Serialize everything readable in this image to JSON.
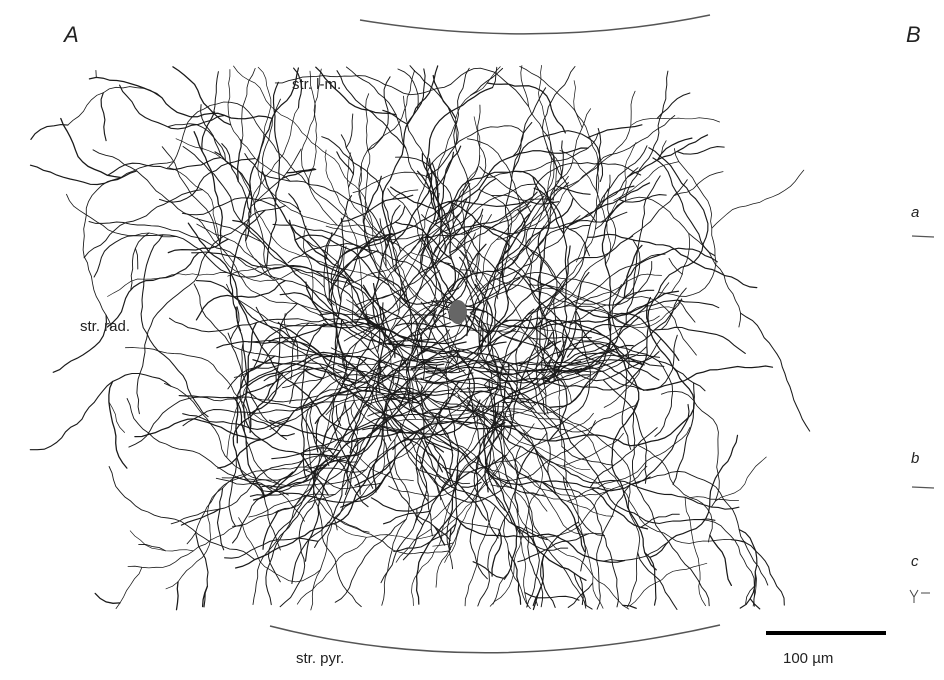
{
  "panels": {
    "a": "A",
    "b": "B"
  },
  "layers": {
    "lacunosum_moleculare": "str. l-m.",
    "radiatum": "str. rad.",
    "pyramidale": "str. pyr."
  },
  "panel_b_labels": {
    "a": "a",
    "b": "b",
    "c": "c"
  },
  "scale_bar": {
    "label": "100 µm",
    "length_um": 100
  },
  "colors": {
    "ink": "#1a1a1a",
    "soma": "#666666",
    "boundary": "#555555"
  }
}
